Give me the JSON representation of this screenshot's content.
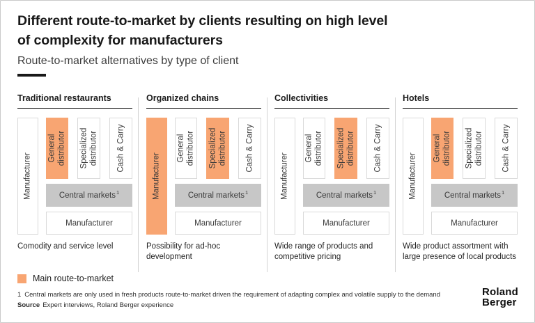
{
  "slide": {
    "title_line1": "Different route-to-market by clients resulting on high level",
    "title_line2": "of complexity for manufacturers",
    "subtitle": "Route-to-market alternatives by type of client"
  },
  "colors": {
    "highlight_orange": "#F8A572",
    "central_markets_gray": "#C7C7C7",
    "box_border": "#d9d9d9",
    "accent_black": "#191919"
  },
  "columns": [
    {
      "header": "Traditional restaurants",
      "channels": [
        {
          "label": "Manufacturer",
          "highlighted": false,
          "full_height": true
        },
        {
          "label": "General distributor",
          "highlighted": true,
          "full_height": false
        },
        {
          "label": "Specialized distributor",
          "highlighted": false,
          "full_height": false
        },
        {
          "label": "Cash & Carry",
          "highlighted": false,
          "full_height": false
        }
      ],
      "central_markets_label": "Central markets",
      "central_markets_footnote_ref": "1",
      "bottom_manufacturer_label": "Manufacturer",
      "caption": "Comodity and service level"
    },
    {
      "header": "Organized chains",
      "channels": [
        {
          "label": "Manufacturer",
          "highlighted": true,
          "full_height": true
        },
        {
          "label": "General distributor",
          "highlighted": false,
          "full_height": false
        },
        {
          "label": "Specialized distributor",
          "highlighted": true,
          "full_height": false
        },
        {
          "label": "Cash & Carry",
          "highlighted": false,
          "full_height": false
        }
      ],
      "central_markets_label": "Central markets",
      "central_markets_footnote_ref": "1",
      "bottom_manufacturer_label": "Manufacturer",
      "caption": "Possibility for ad-hoc development"
    },
    {
      "header": "Collectivities",
      "channels": [
        {
          "label": "Manufacturer",
          "highlighted": false,
          "full_height": true
        },
        {
          "label": "General distributor",
          "highlighted": false,
          "full_height": false
        },
        {
          "label": "Specialized distributor",
          "highlighted": true,
          "full_height": false
        },
        {
          "label": "Cash & Carry",
          "highlighted": false,
          "full_height": false
        }
      ],
      "central_markets_label": "Central markets",
      "central_markets_footnote_ref": "1",
      "bottom_manufacturer_label": "Manufacturer",
      "caption": "Wide range of products and competitive pricing"
    },
    {
      "header": "Hotels",
      "channels": [
        {
          "label": "Manufacturer",
          "highlighted": false,
          "full_height": true
        },
        {
          "label": "General distributor",
          "highlighted": true,
          "full_height": false
        },
        {
          "label": "Specialized distributor",
          "highlighted": false,
          "full_height": false
        },
        {
          "label": "Cash & Carry",
          "highlighted": false,
          "full_height": false
        }
      ],
      "central_markets_label": "Central markets",
      "central_markets_footnote_ref": "1",
      "bottom_manufacturer_label": "Manufacturer",
      "caption": "Wide product assortment with large presence of local products"
    }
  ],
  "legend": {
    "label": "Main route-to-market"
  },
  "footnote": {
    "ref": "1",
    "text": "Central markets are only used in fresh products route-to-market driven the requirement of adapting complex and volatile supply to the demand"
  },
  "source": {
    "label": "Source",
    "text": "Expert interviews, Roland Berger experience"
  },
  "logo": {
    "line1": "Roland",
    "line2": "Berger"
  }
}
